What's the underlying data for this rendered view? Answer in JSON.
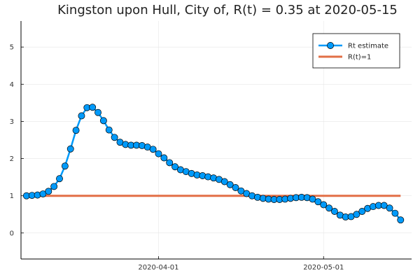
{
  "chart_data": {
    "type": "line",
    "title": "Kingston upon Hull, City of, R(t) = 0.35 at 2020-05-15",
    "xlabel": "",
    "ylabel": "",
    "x_start": "2020-03-08",
    "xlim": [
      "2020-03-07",
      "2020-05-17"
    ],
    "ylim": [
      -0.7,
      5.7
    ],
    "yticks": [
      0,
      1,
      2,
      3,
      4,
      5
    ],
    "xticks": [
      "2020-04-01",
      "2020-05-01"
    ],
    "grid": true,
    "legend_position": "top-right",
    "series": [
      {
        "name": "Rt estimate",
        "color": "#009AFA",
        "marker": "circle",
        "x": [
          "2020-03-08",
          "2020-03-09",
          "2020-03-10",
          "2020-03-11",
          "2020-03-12",
          "2020-03-13",
          "2020-03-14",
          "2020-03-15",
          "2020-03-16",
          "2020-03-17",
          "2020-03-18",
          "2020-03-19",
          "2020-03-20",
          "2020-03-21",
          "2020-03-22",
          "2020-03-23",
          "2020-03-24",
          "2020-03-25",
          "2020-03-26",
          "2020-03-27",
          "2020-03-28",
          "2020-03-29",
          "2020-03-30",
          "2020-03-31",
          "2020-04-01",
          "2020-04-02",
          "2020-04-03",
          "2020-04-04",
          "2020-04-05",
          "2020-04-06",
          "2020-04-07",
          "2020-04-08",
          "2020-04-09",
          "2020-04-10",
          "2020-04-11",
          "2020-04-12",
          "2020-04-13",
          "2020-04-14",
          "2020-04-15",
          "2020-04-16",
          "2020-04-17",
          "2020-04-18",
          "2020-04-19",
          "2020-04-20",
          "2020-04-21",
          "2020-04-22",
          "2020-04-23",
          "2020-04-24",
          "2020-04-25",
          "2020-04-26",
          "2020-04-27",
          "2020-04-28",
          "2020-04-29",
          "2020-04-30",
          "2020-05-01",
          "2020-05-02",
          "2020-05-03",
          "2020-05-04",
          "2020-05-05",
          "2020-05-06",
          "2020-05-07",
          "2020-05-08",
          "2020-05-09",
          "2020-05-10",
          "2020-05-11",
          "2020-05-12",
          "2020-05-13",
          "2020-05-14",
          "2020-05-15"
        ],
        "values": [
          1.0,
          1.01,
          1.02,
          1.05,
          1.12,
          1.25,
          1.46,
          1.8,
          2.26,
          2.76,
          3.15,
          3.37,
          3.38,
          3.24,
          3.02,
          2.77,
          2.57,
          2.44,
          2.38,
          2.36,
          2.36,
          2.35,
          2.31,
          2.25,
          2.13,
          2.02,
          1.89,
          1.78,
          1.7,
          1.65,
          1.6,
          1.56,
          1.54,
          1.51,
          1.48,
          1.44,
          1.38,
          1.3,
          1.22,
          1.13,
          1.06,
          1.0,
          0.96,
          0.93,
          0.91,
          0.9,
          0.9,
          0.91,
          0.93,
          0.95,
          0.96,
          0.95,
          0.91,
          0.84,
          0.76,
          0.67,
          0.58,
          0.48,
          0.43,
          0.44,
          0.5,
          0.58,
          0.66,
          0.71,
          0.74,
          0.74,
          0.67,
          0.53,
          0.35
        ]
      },
      {
        "name": "R(t)=1",
        "color": "#E26F46",
        "x": [
          "2020-03-08",
          "2020-05-15"
        ],
        "values": [
          1,
          1
        ]
      }
    ]
  }
}
